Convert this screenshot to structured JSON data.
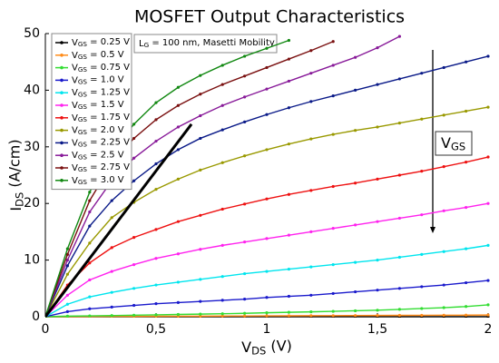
{
  "chart_data": {
    "type": "line",
    "title": "MOSFET Output Characteristics",
    "x_label": "VDS (V)",
    "y_label": "IDS (A/cm)",
    "annotations": [
      "LG = 100 nm, Masetti Mobility",
      "VGS"
    ],
    "x": [
      0,
      0.1,
      0.2,
      0.3,
      0.4,
      0.5,
      0.6,
      0.7,
      0.8,
      0.9,
      1,
      1.1,
      1.2,
      1.3,
      1.4,
      1.5,
      1.6,
      1.7,
      1.8,
      1.9,
      2
    ],
    "series": [
      {
        "name": "VGS = 0.25 V",
        "color": "#000000",
        "values": [
          0,
          0,
          0,
          0,
          0,
          0,
          0,
          0,
          0,
          0,
          0,
          0,
          0,
          0,
          0,
          0,
          0,
          0,
          0,
          0,
          0
        ]
      },
      {
        "name": "VGS = 0.5 V",
        "color": "#ff8c1a",
        "values": [
          0,
          0.02,
          0.03,
          0.05,
          0.06,
          0.08,
          0.09,
          0.1,
          0.12,
          0.13,
          0.15,
          0.16,
          0.18,
          0.19,
          0.21,
          0.22,
          0.24,
          0.25,
          0.27,
          0.28,
          0.3
        ]
      },
      {
        "name": "VGS = 0.75 V",
        "color": "#33dd33",
        "values": [
          0,
          0.1,
          0.15,
          0.2,
          0.27,
          0.33,
          0.4,
          0.46,
          0.53,
          0.6,
          0.7,
          0.78,
          0.86,
          0.95,
          1.05,
          1.15,
          1.3,
          1.45,
          1.6,
          1.8,
          2.1
        ]
      },
      {
        "name": "VGS = 1.0 V",
        "color": "#1a1acc",
        "values": [
          0,
          0.9,
          1.4,
          1.7,
          2,
          2.3,
          2.5,
          2.7,
          2.9,
          3.1,
          3.4,
          3.6,
          3.8,
          4.1,
          4.4,
          4.7,
          5,
          5.3,
          5.6,
          6,
          6.4
        ]
      },
      {
        "name": "VGS = 1.25 V",
        "color": "#00e5ee",
        "values": [
          0,
          2.2,
          3.5,
          4.3,
          5,
          5.6,
          6.1,
          6.6,
          7.1,
          7.6,
          8,
          8.4,
          8.8,
          9.2,
          9.6,
          10,
          10.5,
          11,
          11.5,
          12,
          12.6
        ]
      },
      {
        "name": "VGS = 1.5 V",
        "color": "#ff22ee",
        "values": [
          0,
          3.8,
          6.5,
          8,
          9.2,
          10.3,
          11.1,
          11.9,
          12.6,
          13.2,
          13.8,
          14.4,
          15,
          15.6,
          16.2,
          16.8,
          17.4,
          18,
          18.7,
          19.3,
          20
        ]
      },
      {
        "name": "VGS = 1.75 V",
        "color": "#ee1111",
        "values": [
          0,
          5.6,
          9.5,
          12.2,
          14,
          15.4,
          16.8,
          17.9,
          19,
          19.9,
          20.8,
          21.6,
          22.3,
          23,
          23.6,
          24.3,
          25,
          25.7,
          26.5,
          27.3,
          28.2
        ]
      },
      {
        "name": "VGS = 2.0 V",
        "color": "#999900",
        "values": [
          0,
          7.5,
          13,
          17.5,
          20.2,
          22.5,
          24.3,
          25.9,
          27.2,
          28.4,
          29.5,
          30.5,
          31.4,
          32.2,
          32.9,
          33.5,
          34.2,
          34.9,
          35.6,
          36.3,
          37
        ]
      },
      {
        "name": "VGS = 2.25 V",
        "color": "#0a1a88",
        "values": [
          0,
          9,
          16,
          20.5,
          24,
          27,
          29.5,
          31.5,
          33,
          34.4,
          35.7,
          36.9,
          38,
          39,
          40,
          41,
          42,
          43,
          44,
          45,
          46
        ]
      },
      {
        "name": "VGS = 2.5 V",
        "color": "#881a99",
        "values": [
          0,
          10,
          18.5,
          24,
          28,
          31,
          33.5,
          35.5,
          37.3,
          38.8,
          40.2,
          41.6,
          43,
          44.4,
          45.8,
          47.5,
          49.5,
          null,
          null,
          null,
          null
        ]
      },
      {
        "name": "VGS = 2.75 V",
        "color": "#7a1010",
        "values": [
          0,
          11,
          20.5,
          27,
          31.5,
          34.8,
          37.3,
          39.3,
          41,
          42.5,
          44,
          45.5,
          47,
          48.6,
          null,
          null,
          null,
          null,
          null,
          null,
          null
        ]
      },
      {
        "name": "VGS = 3.0 V",
        "color": "#118811",
        "values": [
          0,
          12,
          22,
          29,
          34,
          37.8,
          40.5,
          42.6,
          44.4,
          46,
          47.4,
          48.8,
          null,
          null,
          null,
          null,
          null,
          null,
          null,
          null,
          null
        ]
      },
      {
        "color": "#000000",
        "x": [
          0,
          0.66
        ],
        "values": [
          0,
          34
        ]
      }
    ],
    "xlim": [
      0,
      2
    ],
    "xticks": [
      0,
      {
        "value": 0.5,
        "label": "0,5"
      },
      1,
      {
        "value": 1.5,
        "label": "1,5"
      },
      2
    ],
    "ylim": [
      0,
      50
    ],
    "yticks": [
      0,
      10,
      20,
      30,
      40,
      50
    ],
    "grid": false,
    "legend": "upper left"
  }
}
